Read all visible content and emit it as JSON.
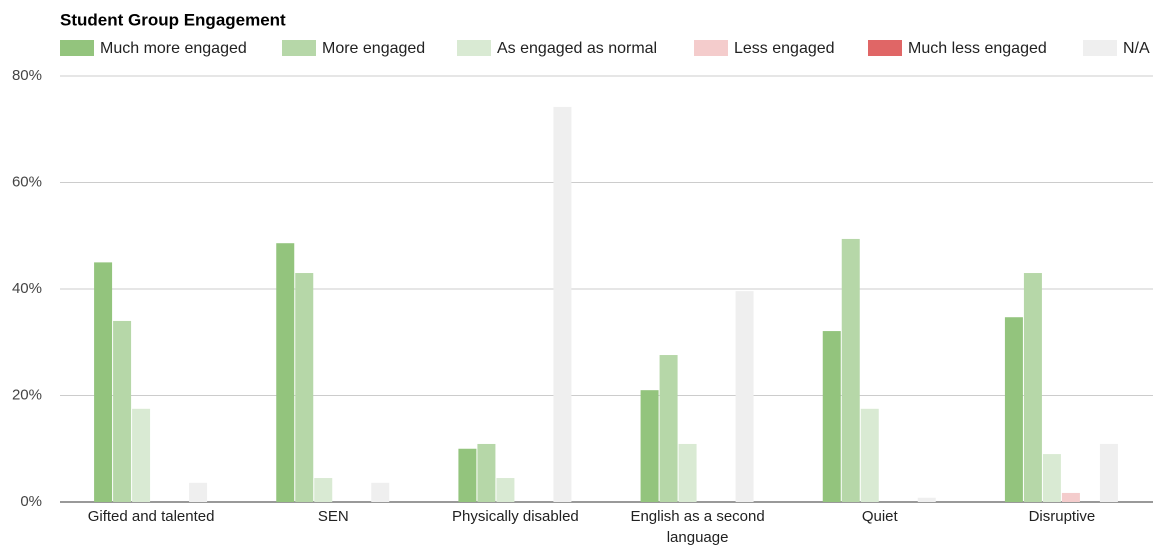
{
  "chart_data": {
    "type": "bar",
    "title": "Student Group Engagement",
    "categories": [
      "Gifted and talented",
      "SEN",
      "Physically disabled",
      "English as a second language",
      "Quiet",
      "Disruptive"
    ],
    "series": [
      {
        "name": "Much more engaged",
        "color": "#93c47d",
        "values": [
          45,
          48.6,
          10,
          21,
          32.1,
          34.7
        ]
      },
      {
        "name": "More engaged",
        "color": "#b6d7a8",
        "values": [
          34,
          43,
          10.9,
          27.6,
          49.4,
          43
        ]
      },
      {
        "name": "As engaged as normal",
        "color": "#d9ead3",
        "values": [
          17.5,
          4.5,
          4.5,
          10.9,
          17.5,
          9
        ]
      },
      {
        "name": "Less engaged",
        "color": "#f4cccc",
        "values": [
          0,
          0,
          0,
          0,
          0,
          1.7
        ]
      },
      {
        "name": "Much less engaged",
        "color": "#e06666",
        "values": [
          0,
          0,
          0,
          0,
          0,
          0
        ]
      },
      {
        "name": "N/A",
        "color": "#efefef",
        "values": [
          3.6,
          3.6,
          74.2,
          39.6,
          0.8,
          10.9
        ]
      }
    ],
    "ylim": [
      0,
      80
    ],
    "yticks": [
      {
        "value": 0,
        "label": "0%"
      },
      {
        "value": 20,
        "label": "20%"
      },
      {
        "value": 40,
        "label": "40%"
      },
      {
        "value": 60,
        "label": "60%"
      },
      {
        "value": 80,
        "label": "80%"
      }
    ],
    "grid": true,
    "legend": "top"
  }
}
